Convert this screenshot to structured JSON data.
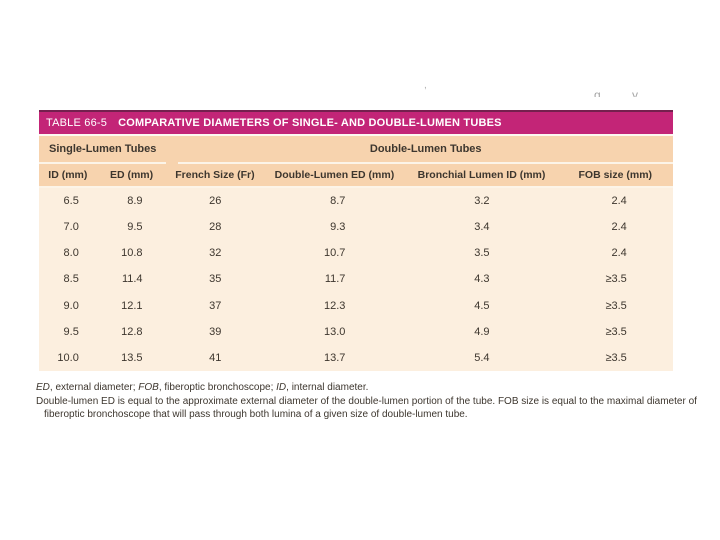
{
  "artifacts": {
    "fragment_left": ",",
    "fragment_right": "g y"
  },
  "table": {
    "label": "TABLE 66-5",
    "title": "COMPARATIVE DIAMETERS OF SINGLE- AND DOUBLE-LUMEN TUBES",
    "group_headers": [
      {
        "label": "Single-Lumen Tubes",
        "columns": 2
      },
      {
        "label": "Double-Lumen Tubes",
        "columns": 4
      }
    ],
    "columns": [
      "ID (mm)",
      "ED (mm)",
      "French Size (Fr)",
      "Double-Lumen ED (mm)",
      "Bronchial Lumen ID (mm)",
      "FOB size (mm)"
    ],
    "rows": [
      [
        "6.5",
        "8.9",
        "26",
        "8.7",
        "3.2",
        "2.4"
      ],
      [
        "7.0",
        "9.5",
        "28",
        "9.3",
        "3.4",
        "2.4"
      ],
      [
        "8.0",
        "10.8",
        "32",
        "10.7",
        "3.5",
        "2.4"
      ],
      [
        "8.5",
        "11.4",
        "35",
        "11.7",
        "4.3",
        "≥3.5"
      ],
      [
        "9.0",
        "12.1",
        "37",
        "12.3",
        "4.5",
        "≥3.5"
      ],
      [
        "9.5",
        "12.8",
        "39",
        "13.0",
        "4.9",
        "≥3.5"
      ],
      [
        "10.0",
        "13.5",
        "41",
        "13.7",
        "5.4",
        "≥3.5"
      ]
    ],
    "footnotes": {
      "line1": [
        {
          "t": "ED"
        },
        {
          "t": ", external diameter; "
        },
        {
          "t": "FOB"
        },
        {
          "t": ", fiberoptic bronchoscope; "
        },
        {
          "t": "ID"
        },
        {
          "t": ", internal diameter."
        }
      ],
      "line2": "Double-lumen ED is equal to the approximate external diameter of the double-lumen portion of the tube. FOB size is equal to the maximal diameter of",
      "line3": "fiberoptic bronchoscope that will pass through both lumina of a given size of double-lumen tube."
    }
  },
  "colors": {
    "title_bar": "#c32577",
    "title_bar_top_edge": "#74204e",
    "header_band": "#f7d3ae",
    "body_band": "#fcefdf",
    "separator": "#fcf4e8",
    "text": "#3d362e"
  }
}
